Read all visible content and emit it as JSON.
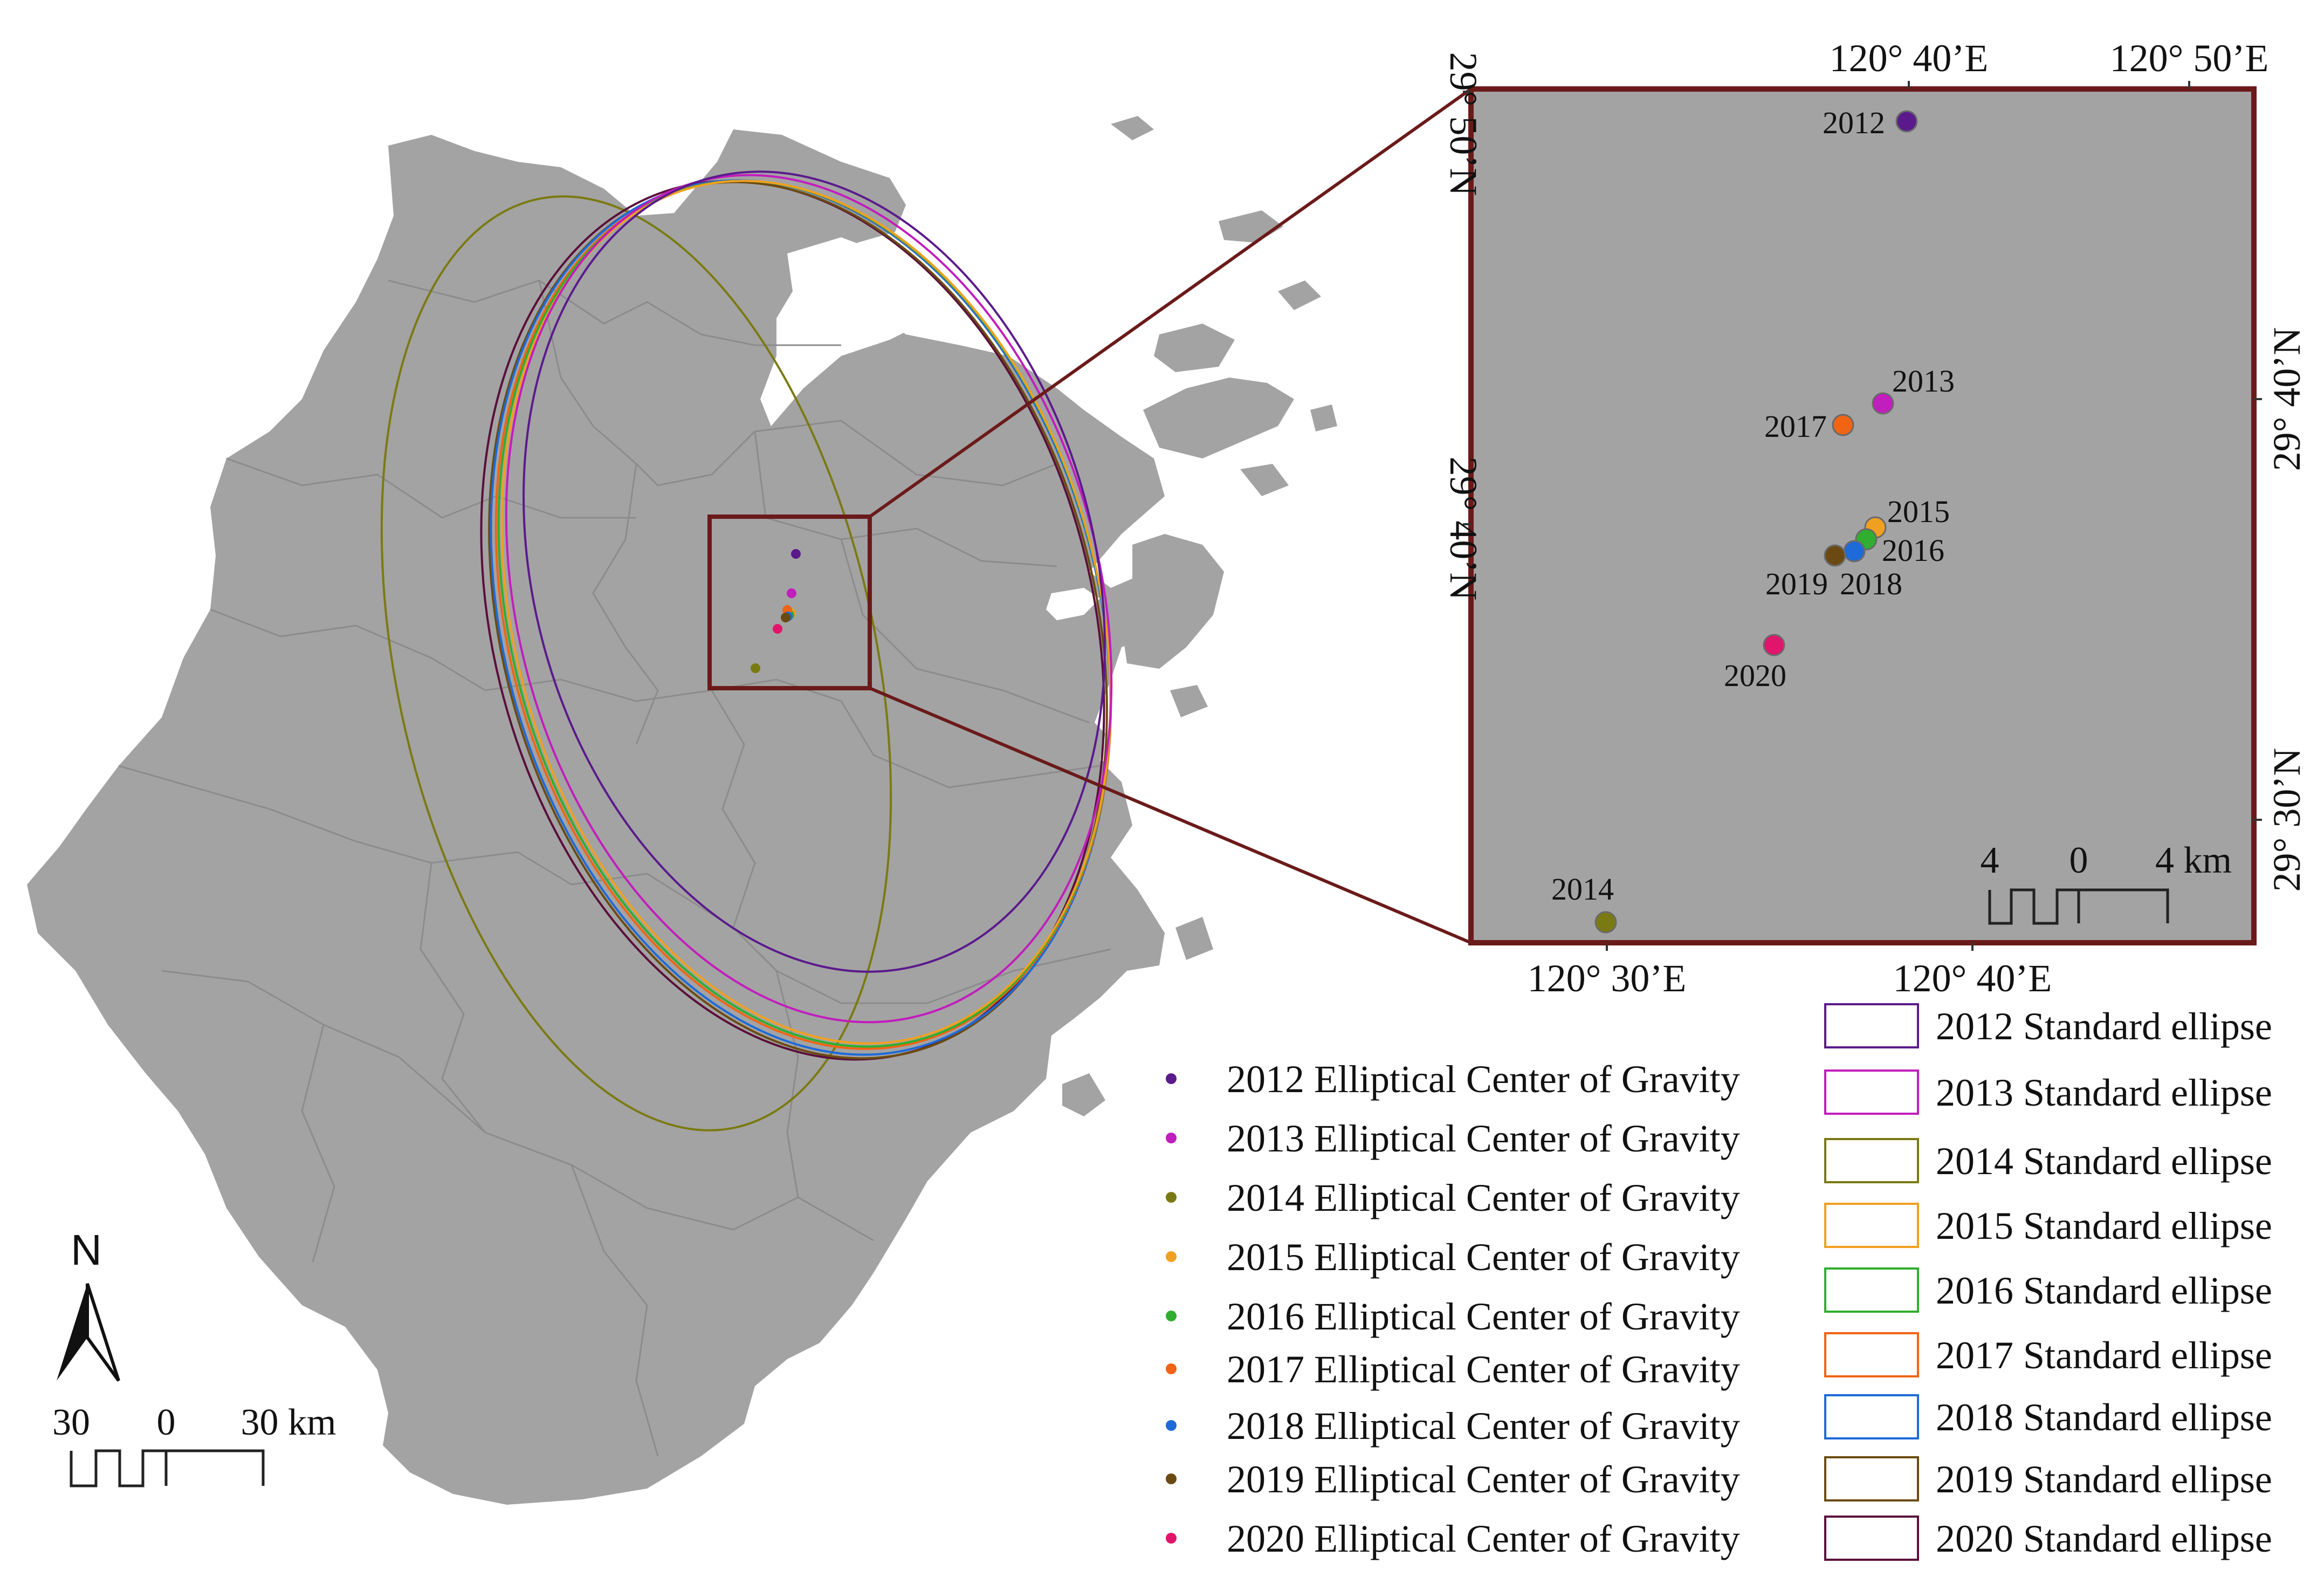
{
  "colors": {
    "land": "#a3a3a3",
    "water": "#ffffff",
    "inset_frame": "#6b1a1a",
    "connector": "#6b1a1a",
    "district_lines": "#8c8c8c"
  },
  "years": [
    {
      "year": "2012",
      "color": "#5b1a8c"
    },
    {
      "year": "2013",
      "color": "#c21dbd"
    },
    {
      "year": "2014",
      "color": "#7a7a12"
    },
    {
      "year": "2015",
      "color": "#f0a020"
    },
    {
      "year": "2016",
      "color": "#2fae2f"
    },
    {
      "year": "2017",
      "color": "#f06414"
    },
    {
      "year": "2018",
      "color": "#1e6ad8"
    },
    {
      "year": "2019",
      "color": "#6b4a12"
    },
    {
      "year": "2020",
      "color": "#e0156b"
    }
  ],
  "north_arrow": {
    "label": "N",
    "icon": "north-arrow-icon"
  },
  "main_scale": {
    "left": "30",
    "mid": "0",
    "right": "30 km"
  },
  "inset": {
    "top_labels": [
      "120° 40’E",
      "120° 50’E"
    ],
    "bottom_labels": [
      "120° 30’E",
      "120° 40’E"
    ],
    "left_labels": [
      "29° 50’N",
      "29° 40’N"
    ],
    "right_labels": [
      "29° 40’N",
      "29° 30’N"
    ],
    "scale": {
      "left": "4",
      "mid": "0",
      "right": "4 km"
    },
    "points": [
      {
        "year": "2012",
        "label": "2012"
      },
      {
        "year": "2013",
        "label": "2013"
      },
      {
        "year": "2014",
        "label": "2014"
      },
      {
        "year": "2015",
        "label": "2015"
      },
      {
        "year": "2016",
        "label": "2016"
      },
      {
        "year": "2017",
        "label": "2017"
      },
      {
        "year": "2018",
        "label": "2018"
      },
      {
        "year": "2019",
        "label": "2019"
      },
      {
        "year": "2020",
        "label": "2020"
      }
    ]
  },
  "legend_points": [
    "2012 Elliptical Center of Gravity",
    "2013 Elliptical Center of Gravity",
    "2014 Elliptical Center of Gravity",
    "2015 Elliptical Center of Gravity",
    "2016 Elliptical Center of Gravity",
    "2017 Elliptical Center of Gravity",
    "2018 Elliptical Center of Gravity",
    "2019 Elliptical Center of Gravity",
    "2020 Elliptical Center of Gravity"
  ],
  "legend_ellipses": [
    "2012 Standard ellipse",
    "2013 Standard ellipse",
    "2014 Standard ellipse",
    "2015 Standard ellipse",
    "2016 Standard ellipse",
    "2017 Standard ellipse",
    "2018 Standard ellipse",
    "2019 Standard ellipse",
    "2020 Standard ellipse"
  ]
}
